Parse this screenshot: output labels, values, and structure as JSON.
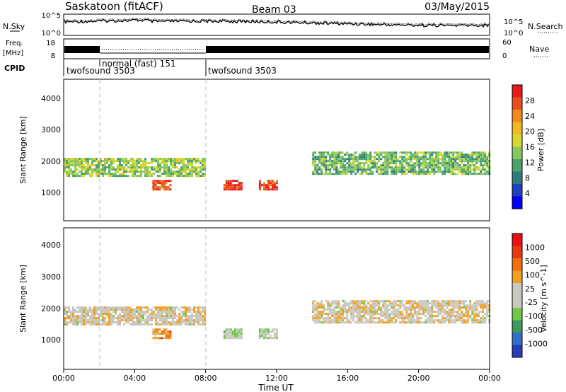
{
  "header": {
    "station": "Saskatoon (fitACF)",
    "beam": "Beam 03",
    "date": "03/May/2015"
  },
  "noise_panel": {
    "left_label": "N.Sky",
    "right_label": "N.Search",
    "left_ticks": [
      "10^5",
      "10^0"
    ],
    "right_ticks": [
      "10^5",
      "10^0"
    ]
  },
  "freq_panel": {
    "left_label_line1": "Freq.",
    "left_label_line2": "[MHz]",
    "right_label": "Nave",
    "left_ticks": [
      "18",
      "8"
    ],
    "right_ticks": [
      "60",
      "0"
    ]
  },
  "cpid_panel": {
    "label": "CPID",
    "segments": [
      {
        "start_hour": 0,
        "end_hour": 2,
        "name": "twofsound 3503"
      },
      {
        "start_hour": 2,
        "end_hour": 8,
        "name": "normal (fast) 151"
      },
      {
        "start_hour": 8,
        "end_hour": 24,
        "name": "twofsound 3503"
      }
    ]
  },
  "x_axis": {
    "label": "Time UT",
    "ticks": [
      "00:00",
      "04:00",
      "08:00",
      "12:00",
      "16:00",
      "20:00",
      "00:00"
    ]
  },
  "chart_data": [
    {
      "type": "heatmap",
      "title": "",
      "xlabel": "Time UT",
      "ylabel": "Slant Range [km]",
      "xlim": [
        0,
        24
      ],
      "ylim": [
        0,
        4500
      ],
      "yticks": [
        "1000",
        "2000",
        "3000",
        "4000"
      ],
      "colorbar": {
        "label": "Power [dB]",
        "ticks": [
          "28",
          "24",
          "20",
          "16",
          "12",
          "8",
          "4"
        ],
        "colors": [
          "#0000ff",
          "#1f3fbf",
          "#2e7d7d",
          "#4aa36e",
          "#86c85e",
          "#d8d62f",
          "#f2b824",
          "#f08a1a",
          "#e8501a",
          "#e81a1a"
        ]
      },
      "features": [
        {
          "hours": [
            0,
            8
          ],
          "range_km": [
            1400,
            2000
          ],
          "value_db": 14
        },
        {
          "hours": [
            5,
            6
          ],
          "range_km": [
            1000,
            1300
          ],
          "value_db": 26
        },
        {
          "hours": [
            9,
            10
          ],
          "range_km": [
            1000,
            1300
          ],
          "value_db": 28
        },
        {
          "hours": [
            11,
            12
          ],
          "range_km": [
            1000,
            1300
          ],
          "value_db": 27
        },
        {
          "hours": [
            14,
            24
          ],
          "range_km": [
            1500,
            2200
          ],
          "value_db": 12
        }
      ]
    },
    {
      "type": "heatmap",
      "title": "",
      "xlabel": "Time UT",
      "ylabel": "Slant Range [km]",
      "xlim": [
        0,
        24
      ],
      "ylim": [
        0,
        4500
      ],
      "yticks": [
        "1000",
        "2000",
        "3000",
        "4000"
      ],
      "colorbar": {
        "label": "Velocity [m s^-1]",
        "ticks": [
          "1000",
          "500",
          "100",
          "25",
          "-25",
          "-100",
          "-500",
          "-1000"
        ],
        "colors": [
          "#2b3cb8",
          "#2f6fd0",
          "#3d9a5a",
          "#70c84a",
          "#c8c8c0",
          "#c8c8c0",
          "#f0a020",
          "#f07010",
          "#e83a10",
          "#e81010"
        ]
      },
      "features": [
        {
          "hours": [
            0,
            8
          ],
          "range_km": [
            1400,
            2000
          ],
          "value_ms": 0
        },
        {
          "hours": [
            5,
            6
          ],
          "range_km": [
            1000,
            1300
          ],
          "value_ms": 300
        },
        {
          "hours": [
            9,
            10
          ],
          "range_km": [
            1000,
            1300
          ],
          "value_ms": -200
        },
        {
          "hours": [
            11,
            12
          ],
          "range_km": [
            1000,
            1300
          ],
          "value_ms": -150
        },
        {
          "hours": [
            14,
            24
          ],
          "range_km": [
            1500,
            2200
          ],
          "value_ms": 0
        }
      ]
    }
  ]
}
